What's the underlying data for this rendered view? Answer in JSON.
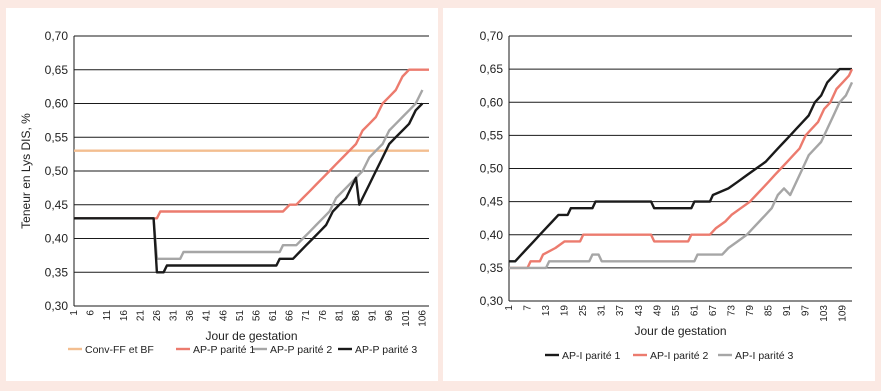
{
  "colors": {
    "background": "#fbe9e3",
    "panel": "#ffffff",
    "peach": "#f3be90",
    "salmon": "#ec7b6e",
    "gray": "#a6a6a6",
    "black": "#1a1a1a"
  },
  "chart_data": [
    {
      "type": "line",
      "ylabel": "Teneur en Lys DIS, %",
      "xlabel": "Jour de gestation",
      "ylim": [
        0.3,
        0.7
      ],
      "yticks": [
        "0,30",
        "0,35",
        "0,40",
        "0,45",
        "0,50",
        "0,55",
        "0,60",
        "0,65",
        "0,70"
      ],
      "x_tick_labels": [
        "1",
        "6",
        "11",
        "16",
        "21",
        "26",
        "31",
        "36",
        "41",
        "46",
        "51",
        "56",
        "61",
        "66",
        "71",
        "76",
        "81",
        "86",
        "91",
        "96",
        "101",
        "106"
      ],
      "xlim": [
        1,
        108
      ],
      "grid": true,
      "legend_position": "bottom",
      "series": [
        {
          "name": "Conv-FF et BF",
          "color": "#f3be90",
          "points": [
            [
              1,
              0.53
            ],
            [
              108,
              0.53
            ]
          ]
        },
        {
          "name": "AP-P parité 1",
          "color": "#ec7b6e",
          "points": [
            [
              1,
              0.43
            ],
            [
              26,
              0.43
            ],
            [
              27,
              0.44
            ],
            [
              64,
              0.44
            ],
            [
              66,
              0.45
            ],
            [
              68,
              0.45
            ],
            [
              70,
              0.46
            ],
            [
              72,
              0.47
            ],
            [
              74,
              0.48
            ],
            [
              76,
              0.49
            ],
            [
              78,
              0.5
            ],
            [
              80,
              0.51
            ],
            [
              82,
              0.52
            ],
            [
              84,
              0.53
            ],
            [
              86,
              0.54
            ],
            [
              88,
              0.56
            ],
            [
              90,
              0.57
            ],
            [
              92,
              0.58
            ],
            [
              94,
              0.6
            ],
            [
              96,
              0.61
            ],
            [
              98,
              0.62
            ],
            [
              100,
              0.64
            ],
            [
              102,
              0.65
            ],
            [
              108,
              0.65
            ]
          ]
        },
        {
          "name": "AP-P parité 2",
          "color": "#a6a6a6",
          "points": [
            [
              1,
              0.43
            ],
            [
              25,
              0.43
            ],
            [
              26,
              0.37
            ],
            [
              33,
              0.37
            ],
            [
              34,
              0.38
            ],
            [
              63,
              0.38
            ],
            [
              64,
              0.39
            ],
            [
              68,
              0.39
            ],
            [
              70,
              0.4
            ],
            [
              72,
              0.41
            ],
            [
              74,
              0.42
            ],
            [
              76,
              0.43
            ],
            [
              78,
              0.44
            ],
            [
              80,
              0.46
            ],
            [
              82,
              0.47
            ],
            [
              84,
              0.48
            ],
            [
              86,
              0.49
            ],
            [
              88,
              0.5
            ],
            [
              90,
              0.52
            ],
            [
              92,
              0.53
            ],
            [
              94,
              0.54
            ],
            [
              96,
              0.56
            ],
            [
              98,
              0.57
            ],
            [
              100,
              0.58
            ],
            [
              102,
              0.59
            ],
            [
              104,
              0.6
            ],
            [
              106,
              0.62
            ]
          ]
        },
        {
          "name": "AP-P parité 3",
          "color": "#1a1a1a",
          "points": [
            [
              1,
              0.43
            ],
            [
              25,
              0.43
            ],
            [
              26,
              0.35
            ],
            [
              28,
              0.35
            ],
            [
              29,
              0.36
            ],
            [
              62,
              0.36
            ],
            [
              63,
              0.37
            ],
            [
              67,
              0.37
            ],
            [
              69,
              0.38
            ],
            [
              71,
              0.39
            ],
            [
              73,
              0.4
            ],
            [
              75,
              0.41
            ],
            [
              77,
              0.42
            ],
            [
              79,
              0.44
            ],
            [
              81,
              0.45
            ],
            [
              83,
              0.46
            ],
            [
              85,
              0.48
            ],
            [
              86,
              0.49
            ],
            [
              87,
              0.45
            ],
            [
              88,
              0.46
            ],
            [
              90,
              0.48
            ],
            [
              92,
              0.5
            ],
            [
              94,
              0.52
            ],
            [
              96,
              0.54
            ],
            [
              98,
              0.55
            ],
            [
              100,
              0.56
            ],
            [
              102,
              0.57
            ],
            [
              104,
              0.59
            ],
            [
              106,
              0.6
            ]
          ]
        }
      ]
    },
    {
      "type": "line",
      "ylabel": "",
      "xlabel": "Jour de gestation",
      "ylim": [
        0.3,
        0.7
      ],
      "yticks": [
        "0,30",
        "0,35",
        "0,40",
        "0,45",
        "0,50",
        "0,55",
        "0,60",
        "0,65",
        "0,70"
      ],
      "x_tick_labels": [
        "1",
        "7",
        "13",
        "19",
        "25",
        "31",
        "37",
        "43",
        "49",
        "55",
        "61",
        "67",
        "73",
        "79",
        "85",
        "91",
        "97",
        "103",
        "109"
      ],
      "xlim": [
        1,
        112
      ],
      "grid": true,
      "legend_position": "bottom",
      "series": [
        {
          "name": "AP-I parité 1",
          "color": "#1a1a1a",
          "points": [
            [
              1,
              0.36
            ],
            [
              3,
              0.36
            ],
            [
              5,
              0.37
            ],
            [
              7,
              0.38
            ],
            [
              9,
              0.39
            ],
            [
              11,
              0.4
            ],
            [
              13,
              0.41
            ],
            [
              15,
              0.42
            ],
            [
              17,
              0.43
            ],
            [
              20,
              0.43
            ],
            [
              21,
              0.44
            ],
            [
              28,
              0.44
            ],
            [
              29,
              0.45
            ],
            [
              47,
              0.45
            ],
            [
              48,
              0.44
            ],
            [
              60,
              0.44
            ],
            [
              61,
              0.45
            ],
            [
              66,
              0.45
            ],
            [
              67,
              0.46
            ],
            [
              72,
              0.47
            ],
            [
              75,
              0.48
            ],
            [
              78,
              0.49
            ],
            [
              81,
              0.5
            ],
            [
              84,
              0.51
            ],
            [
              86,
              0.52
            ],
            [
              88,
              0.53
            ],
            [
              90,
              0.54
            ],
            [
              92,
              0.55
            ],
            [
              94,
              0.56
            ],
            [
              96,
              0.57
            ],
            [
              98,
              0.58
            ],
            [
              100,
              0.6
            ],
            [
              102,
              0.61
            ],
            [
              104,
              0.63
            ],
            [
              106,
              0.64
            ],
            [
              108,
              0.65
            ],
            [
              112,
              0.65
            ]
          ]
        },
        {
          "name": "AP-I parité 2",
          "color": "#ec7b6e",
          "points": [
            [
              1,
              0.35
            ],
            [
              7,
              0.35
            ],
            [
              8,
              0.36
            ],
            [
              11,
              0.36
            ],
            [
              12,
              0.37
            ],
            [
              16,
              0.38
            ],
            [
              19,
              0.39
            ],
            [
              24,
              0.39
            ],
            [
              25,
              0.4
            ],
            [
              47,
              0.4
            ],
            [
              48,
              0.39
            ],
            [
              59,
              0.39
            ],
            [
              60,
              0.4
            ],
            [
              66,
              0.4
            ],
            [
              68,
              0.41
            ],
            [
              71,
              0.42
            ],
            [
              73,
              0.43
            ],
            [
              76,
              0.44
            ],
            [
              79,
              0.45
            ],
            [
              81,
              0.46
            ],
            [
              83,
              0.47
            ],
            [
              85,
              0.48
            ],
            [
              87,
              0.49
            ],
            [
              89,
              0.5
            ],
            [
              91,
              0.51
            ],
            [
              93,
              0.52
            ],
            [
              95,
              0.53
            ],
            [
              97,
              0.55
            ],
            [
              99,
              0.56
            ],
            [
              101,
              0.57
            ],
            [
              103,
              0.59
            ],
            [
              105,
              0.6
            ],
            [
              107,
              0.62
            ],
            [
              109,
              0.63
            ],
            [
              111,
              0.64
            ],
            [
              112,
              0.65
            ]
          ]
        },
        {
          "name": "AP-I parité 3",
          "color": "#a6a6a6",
          "points": [
            [
              1,
              0.35
            ],
            [
              13,
              0.35
            ],
            [
              14,
              0.36
            ],
            [
              27,
              0.36
            ],
            [
              28,
              0.37
            ],
            [
              30,
              0.37
            ],
            [
              31,
              0.36
            ],
            [
              61,
              0.36
            ],
            [
              62,
              0.37
            ],
            [
              70,
              0.37
            ],
            [
              72,
              0.38
            ],
            [
              75,
              0.39
            ],
            [
              78,
              0.4
            ],
            [
              80,
              0.41
            ],
            [
              82,
              0.42
            ],
            [
              84,
              0.43
            ],
            [
              86,
              0.44
            ],
            [
              88,
              0.46
            ],
            [
              90,
              0.47
            ],
            [
              92,
              0.46
            ],
            [
              94,
              0.48
            ],
            [
              96,
              0.5
            ],
            [
              98,
              0.52
            ],
            [
              100,
              0.53
            ],
            [
              102,
              0.54
            ],
            [
              104,
              0.56
            ],
            [
              106,
              0.58
            ],
            [
              108,
              0.6
            ],
            [
              110,
              0.61
            ],
            [
              112,
              0.63
            ]
          ]
        }
      ]
    }
  ]
}
